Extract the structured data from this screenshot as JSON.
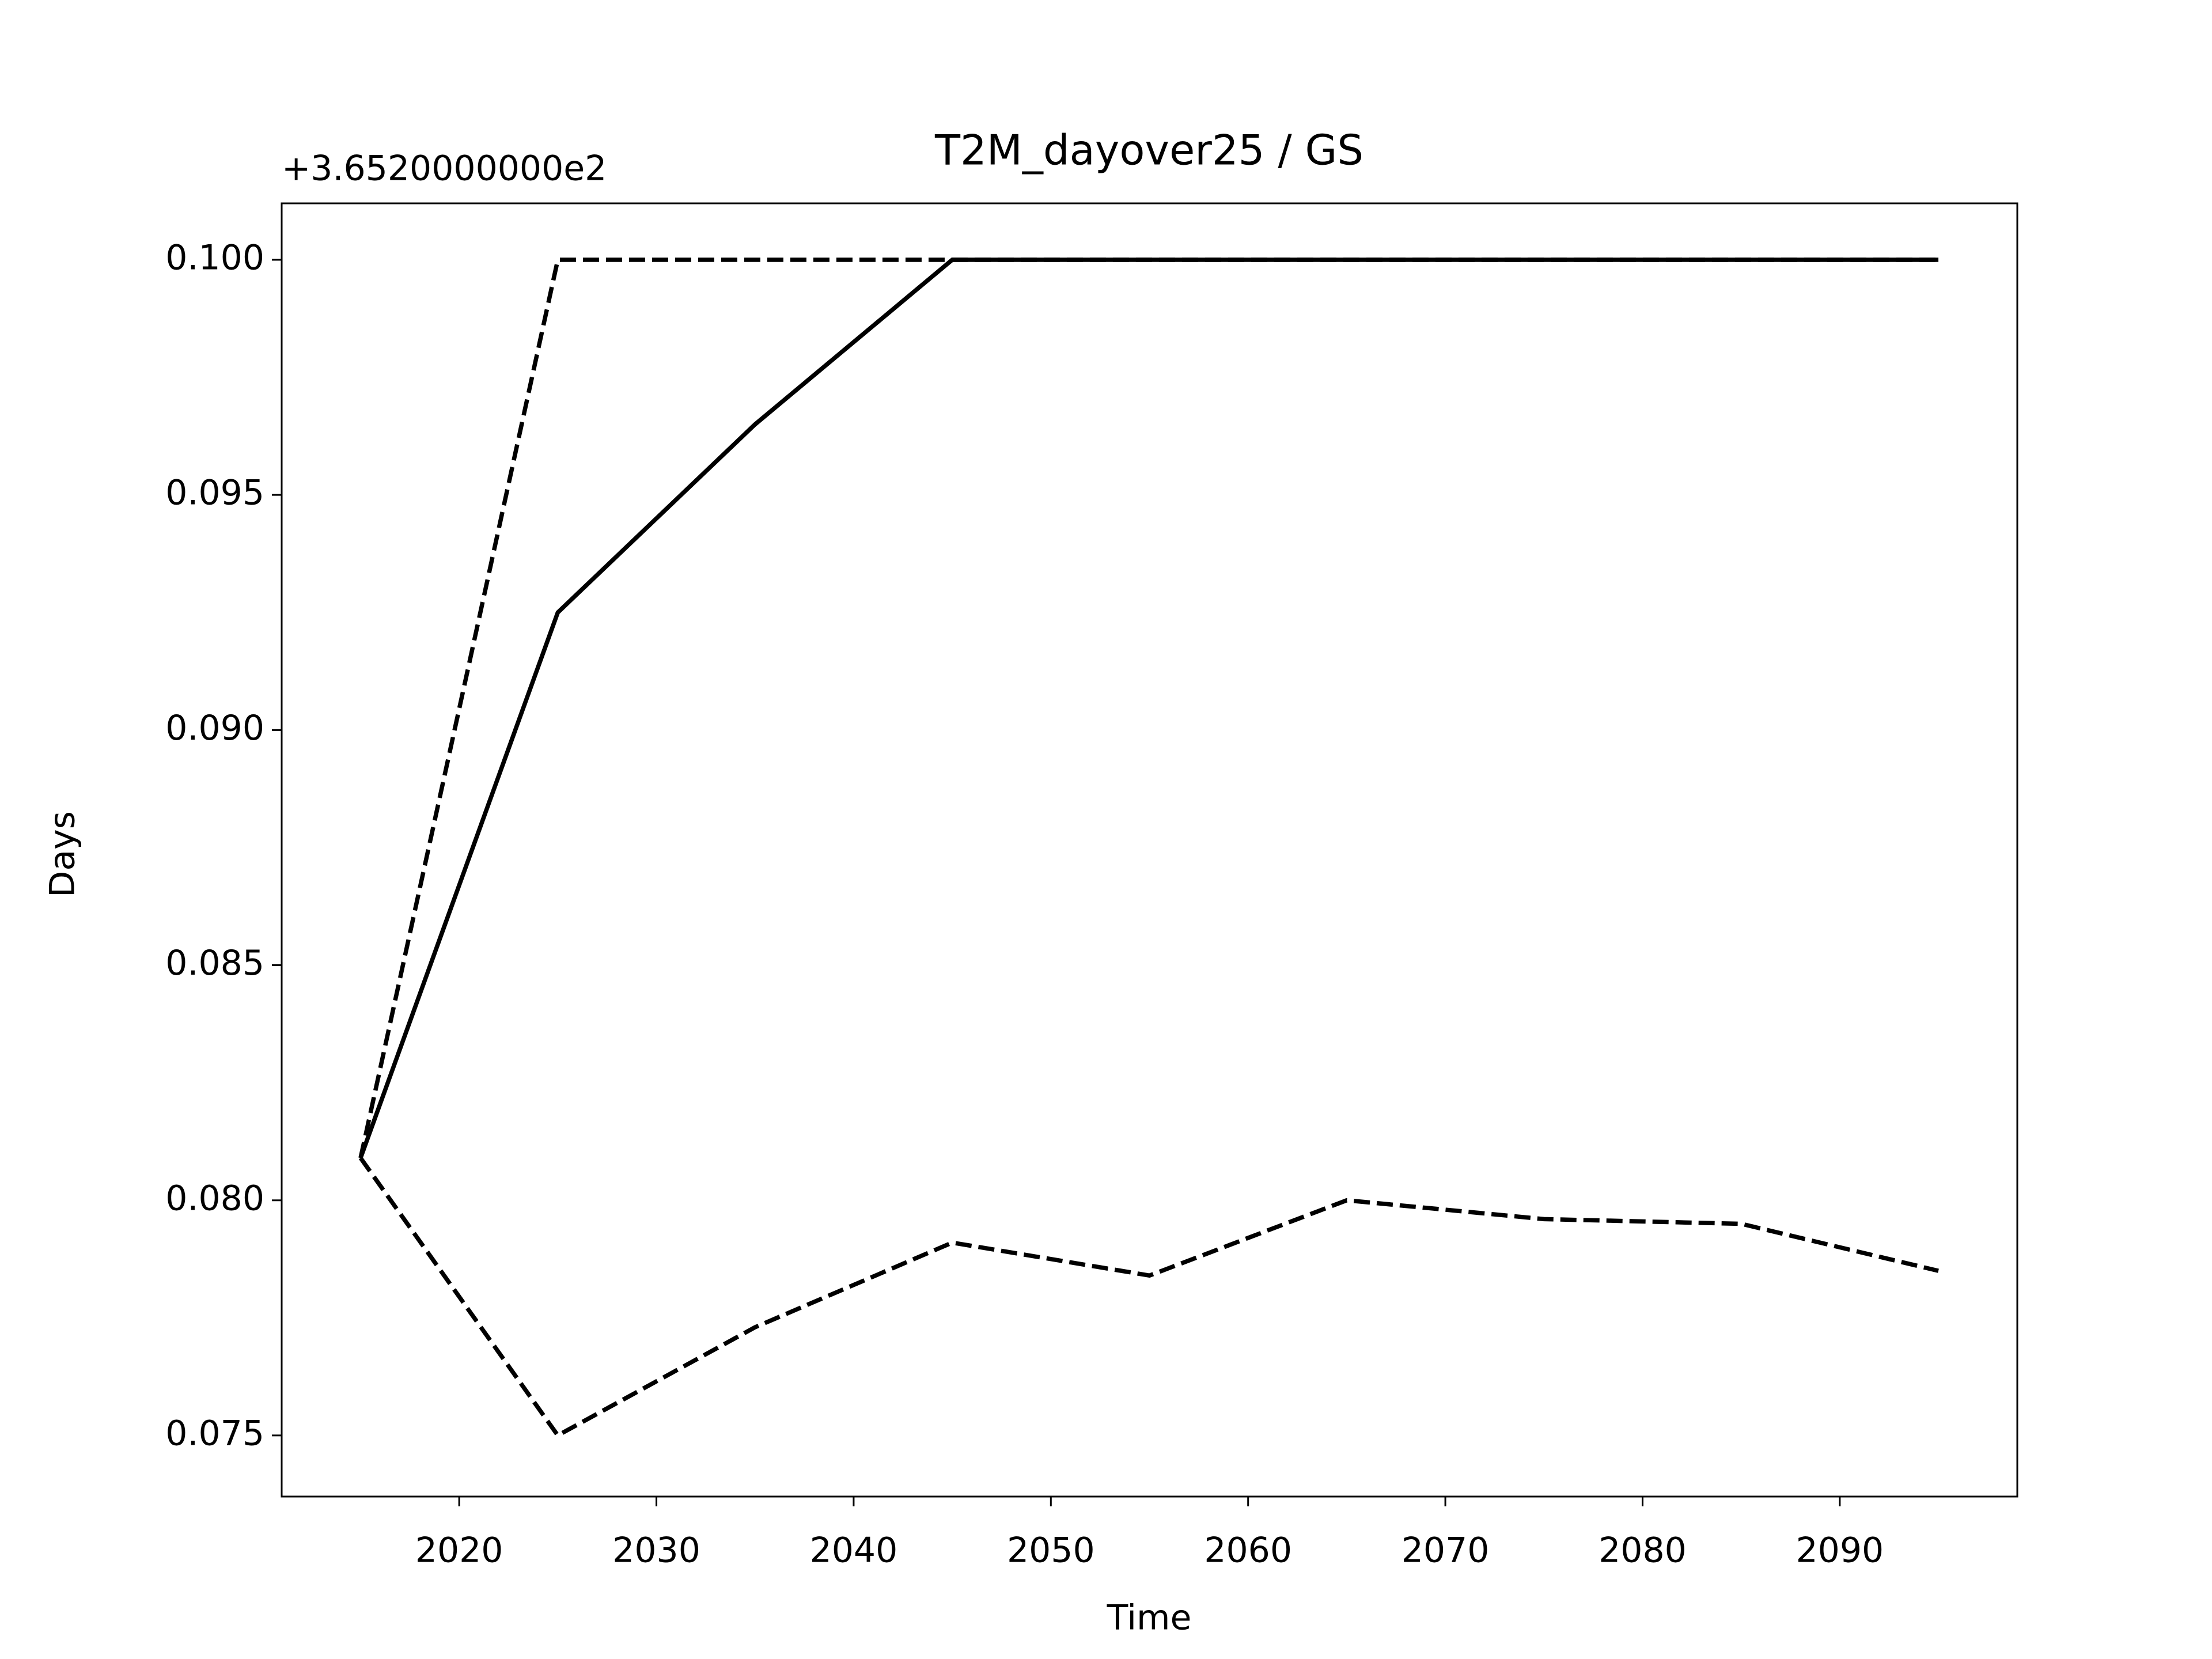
{
  "chart_data": {
    "type": "line",
    "title": "T2M_dayover25 / GS",
    "offset_text": "+3.6520000000e2",
    "xlabel": "Time",
    "ylabel": "Days",
    "x": [
      2015,
      2025,
      2035,
      2045,
      2055,
      2065,
      2075,
      2085,
      2095
    ],
    "series": [
      {
        "color": "#000000",
        "linestyle": "solid",
        "values": [
          0.0809,
          0.0925,
          0.0965,
          0.1,
          0.1,
          0.1,
          0.1,
          0.1,
          0.1
        ]
      },
      {
        "color": "#000000",
        "linestyle": "dashed",
        "values": [
          0.0809,
          0.1,
          0.1,
          0.1,
          0.1,
          0.1,
          0.1,
          0.1,
          0.1
        ]
      },
      {
        "color": "#000000",
        "linestyle": "dashed",
        "values": [
          0.0809,
          0.075,
          0.0773,
          0.0791,
          0.0784,
          0.08,
          0.0796,
          0.0795,
          0.0785
        ]
      }
    ],
    "xlim": [
      2011,
      2099
    ],
    "xticks": [
      2020,
      2030,
      2040,
      2050,
      2060,
      2070,
      2080,
      2090
    ],
    "ylim": [
      0.0737,
      0.1012
    ],
    "yticks": [
      {
        "value": 0.1,
        "label": "0.100"
      },
      0.095,
      {
        "value": 0.09,
        "label": "0.090"
      },
      0.085,
      {
        "value": 0.08,
        "label": "0.080"
      },
      0.075
    ],
    "grid": false
  }
}
